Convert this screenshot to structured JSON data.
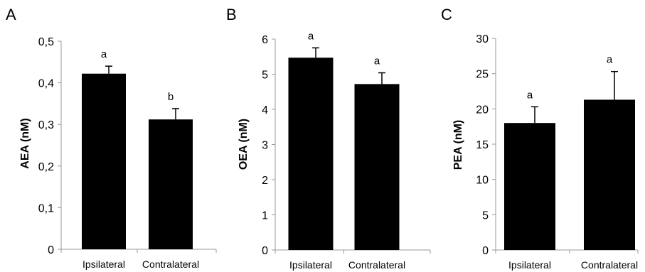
{
  "chart_data": [
    {
      "type": "bar",
      "panel": "A",
      "categories": [
        "Ipsilateral",
        "Contralateral"
      ],
      "values": [
        0.422,
        0.312
      ],
      "errors": [
        0.018,
        0.026
      ],
      "significance": [
        "a",
        "b"
      ],
      "ylabel": "AEA (nM)",
      "ylim": [
        0,
        0.5
      ],
      "yticks": [
        "0",
        "0,1",
        "0,2",
        "0,3",
        "0,4",
        "0,5"
      ],
      "ytick_values": [
        0,
        0.1,
        0.2,
        0.3,
        0.4,
        0.5
      ],
      "grid": false
    },
    {
      "type": "bar",
      "panel": "B",
      "categories": [
        "Ipsilateral",
        "Contralateral"
      ],
      "values": [
        5.47,
        4.72
      ],
      "errors": [
        0.28,
        0.32
      ],
      "significance": [
        "a",
        "a"
      ],
      "ylabel": "OEA (nM)",
      "ylim": [
        0,
        6
      ],
      "yticks": [
        "0",
        "1",
        "2",
        "3",
        "4",
        "5",
        "6"
      ],
      "ytick_values": [
        0,
        1,
        2,
        3,
        4,
        5,
        6
      ],
      "grid": false
    },
    {
      "type": "bar",
      "panel": "C",
      "categories": [
        "Ipsilateral",
        "Contralateral"
      ],
      "values": [
        18.0,
        21.3
      ],
      "errors": [
        2.3,
        4.0
      ],
      "significance": [
        "a",
        "a"
      ],
      "ylabel": "PEA (nM)",
      "ylim": [
        0,
        30
      ],
      "yticks": [
        "0",
        "5",
        "10",
        "15",
        "20",
        "25",
        "30"
      ],
      "ytick_values": [
        0,
        5,
        10,
        15,
        20,
        25,
        30
      ],
      "grid": false
    }
  ],
  "colors": {
    "bar": "#000000",
    "axis": "#9a9a9a",
    "text": "#000000"
  }
}
